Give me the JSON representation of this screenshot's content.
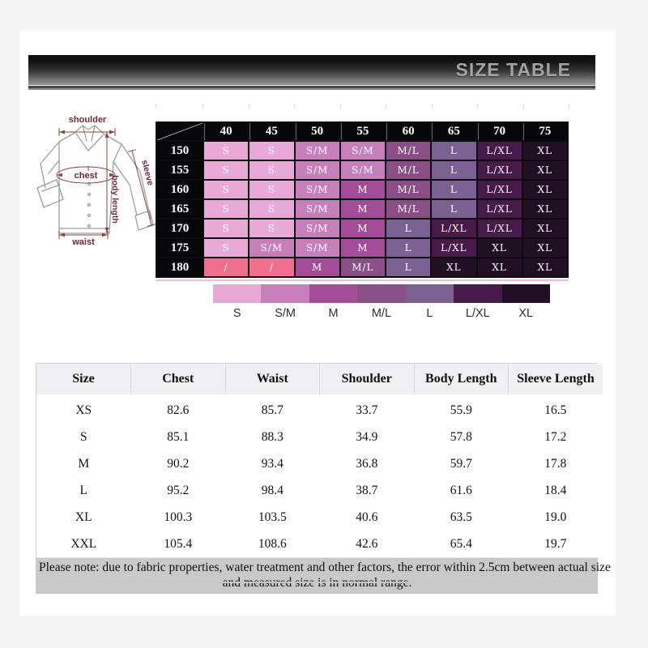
{
  "banner": {
    "title": "SIZE TABLE"
  },
  "diagram": {
    "shoulder_label": "shoulder",
    "sleeve_label": "sleeve",
    "chest_label": "chest",
    "body_length_label": "body length",
    "waist_label": "waist"
  },
  "size_matrix": {
    "columns": [
      "40",
      "45",
      "50",
      "55",
      "60",
      "65",
      "70",
      "75"
    ],
    "rows": [
      {
        "height": "150",
        "cells": [
          "S",
          "S",
          "S/M",
          "S/M",
          "M/L",
          "L",
          "L/XL",
          "XL"
        ]
      },
      {
        "height": "155",
        "cells": [
          "S",
          "S",
          "S/M",
          "S/M",
          "M/L",
          "L",
          "L/XL",
          "XL"
        ]
      },
      {
        "height": "160",
        "cells": [
          "S",
          "S",
          "S/M",
          "M",
          "M/L",
          "L",
          "L/XL",
          "XL"
        ]
      },
      {
        "height": "165",
        "cells": [
          "S",
          "S",
          "S/M",
          "M",
          "M/L",
          "L",
          "L/XL",
          "XL"
        ]
      },
      {
        "height": "170",
        "cells": [
          "S",
          "S",
          "S/M",
          "M",
          "L",
          "L/XL",
          "L/XL",
          "XL"
        ]
      },
      {
        "height": "175",
        "cells": [
          "S",
          "S/M",
          "S/M",
          "M",
          "L",
          "L/XL",
          "XL",
          "XL"
        ]
      },
      {
        "height": "180",
        "cells": [
          "/",
          "/",
          "M",
          "M/L",
          "L",
          "XL",
          "XL",
          "XL"
        ]
      }
    ],
    "colors": {
      "S": "#e9a9d8",
      "S/M": "#c77fbb",
      "M": "#a34d99",
      "M/L": "#8b4f88",
      "L": "#7b6092",
      "L/XL": "#471a49",
      "XL": "#211023",
      "/": "#ef6f8e"
    }
  },
  "legend": {
    "items": [
      "S",
      "S/M",
      "M",
      "M/L",
      "L",
      "L/XL",
      "XL"
    ]
  },
  "measurement_table": {
    "headers": [
      "Size",
      "Chest",
      "Waist",
      "Shoulder",
      "Body Length",
      "Sleeve Length"
    ],
    "rows": [
      [
        "XS",
        "82.6",
        "85.7",
        "33.7",
        "55.9",
        "16.5"
      ],
      [
        "S",
        "85.1",
        "88.3",
        "34.9",
        "57.8",
        "17.2"
      ],
      [
        "M",
        "90.2",
        "93.4",
        "36.8",
        "59.7",
        "17.8"
      ],
      [
        "L",
        "95.2",
        "98.4",
        "38.7",
        "61.6",
        "18.4"
      ],
      [
        "XL",
        "100.3",
        "103.5",
        "40.6",
        "63.5",
        "19.0"
      ],
      [
        "XXL",
        "105.4",
        "108.6",
        "42.6",
        "65.4",
        "19.7"
      ]
    ]
  },
  "note": {
    "line1": "Please note: due to fabric properties, water treatment and other factors, the error within 2.5cm between actual size",
    "line2": "and measured size is in normal range."
  }
}
